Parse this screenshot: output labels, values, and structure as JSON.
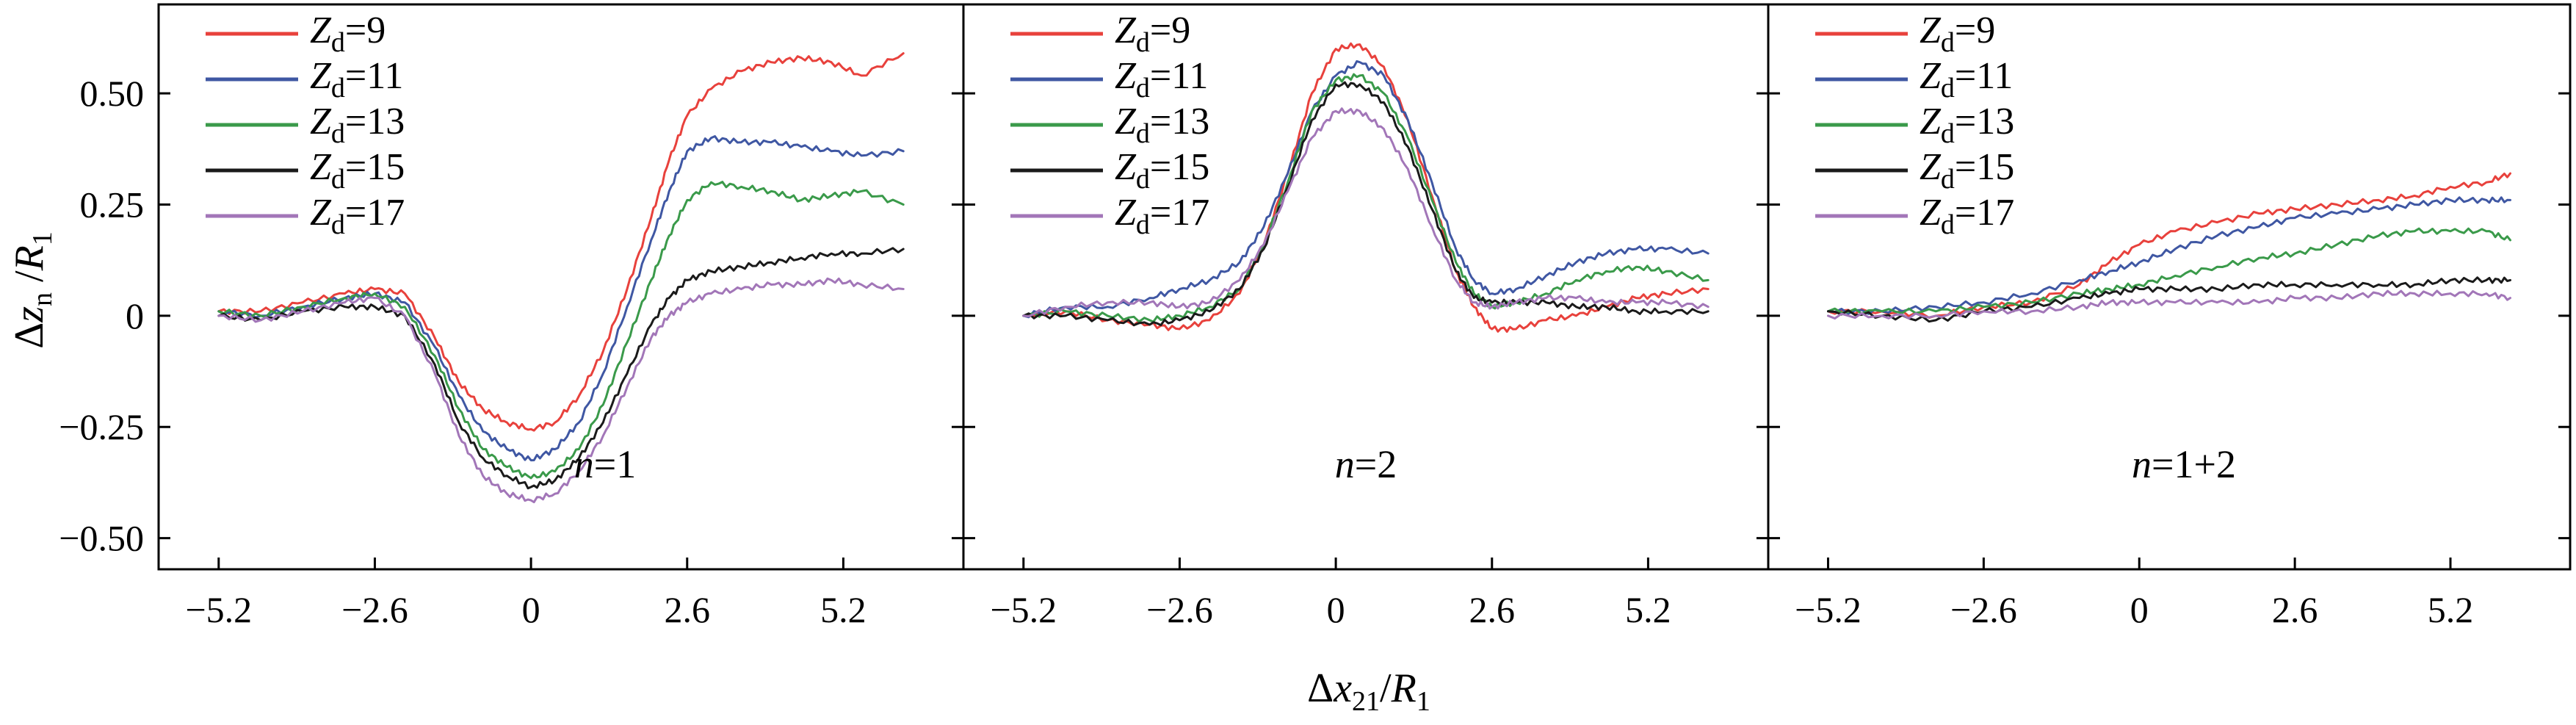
{
  "colors": {
    "Zd=9": "#e8413c",
    "Zd=11": "#3f57a3",
    "Zd=13": "#3a9a4a",
    "Zd=15": "#1a1a1a",
    "Zd=17": "#a276b8"
  },
  "chart_data": [
    {
      "type": "line",
      "panel_label": "n=1",
      "xlim": [
        -6.2,
        7.2
      ],
      "ylim": [
        -0.57,
        0.7
      ],
      "xticks": [
        -5.2,
        -2.6,
        0,
        2.6,
        5.2
      ],
      "xtick_labels": [
        "−5.2",
        "−2.6",
        "0",
        "2.6",
        "5.2"
      ],
      "yticks": [
        0.5,
        0.25,
        0,
        -0.25,
        -0.5
      ],
      "ytick_labels": [
        "0.50",
        "0.25",
        "0",
        "−0.25",
        "−0.50"
      ],
      "ylabel": "Δz_n /R_1",
      "legend": [
        "Zd=9",
        "Zd=11",
        "Zd=13",
        "Zd=15",
        "Zd=17"
      ],
      "series": [
        {
          "name": "Zd=9",
          "x": [
            -5.2,
            -4.5,
            -3.8,
            -3.1,
            -2.6,
            -2.1,
            -1.6,
            -1.2,
            -0.8,
            -0.4,
            0,
            0.4,
            0.8,
            1.2,
            1.6,
            2.0,
            2.3,
            2.6,
            3.0,
            3.5,
            4.0,
            4.5,
            5.0,
            5.5,
            6.2
          ],
          "y": [
            0.01,
            0.01,
            0.03,
            0.05,
            0.06,
            0.05,
            -0.05,
            -0.15,
            -0.21,
            -0.24,
            -0.255,
            -0.24,
            -0.18,
            -0.08,
            0.06,
            0.22,
            0.35,
            0.45,
            0.51,
            0.55,
            0.57,
            0.58,
            0.57,
            0.54,
            0.59
          ]
        },
        {
          "name": "Zd=11",
          "x": [
            -5.2,
            -4.5,
            -3.8,
            -3.1,
            -2.6,
            -2.1,
            -1.6,
            -1.2,
            -0.8,
            -0.4,
            0,
            0.4,
            0.8,
            1.2,
            1.6,
            2.0,
            2.3,
            2.6,
            3.0,
            3.5,
            4.0,
            4.5,
            5.0,
            5.5,
            6.2
          ],
          "y": [
            0.01,
            0.0,
            0.02,
            0.04,
            0.05,
            0.03,
            -0.07,
            -0.18,
            -0.26,
            -0.3,
            -0.325,
            -0.3,
            -0.24,
            -0.13,
            0.02,
            0.17,
            0.28,
            0.37,
            0.4,
            0.39,
            0.39,
            0.38,
            0.37,
            0.36,
            0.37
          ]
        },
        {
          "name": "Zd=13",
          "x": [
            -5.2,
            -4.5,
            -3.8,
            -3.1,
            -2.6,
            -2.1,
            -1.6,
            -1.2,
            -0.8,
            -0.4,
            0,
            0.4,
            0.8,
            1.2,
            1.6,
            2.0,
            2.3,
            2.6,
            3.0,
            3.5,
            4.0,
            4.5,
            5.0,
            5.5,
            6.2
          ],
          "y": [
            0.01,
            0.0,
            0.02,
            0.04,
            0.05,
            0.02,
            -0.09,
            -0.21,
            -0.3,
            -0.34,
            -0.365,
            -0.35,
            -0.3,
            -0.2,
            -0.06,
            0.08,
            0.18,
            0.26,
            0.3,
            0.29,
            0.28,
            0.26,
            0.27,
            0.28,
            0.25
          ]
        },
        {
          "name": "Zd=15",
          "x": [
            -5.2,
            -4.5,
            -3.8,
            -3.1,
            -2.6,
            -2.1,
            -1.6,
            -1.2,
            -0.8,
            -0.4,
            0,
            0.4,
            0.8,
            1.2,
            1.6,
            2.0,
            2.3,
            2.6,
            3.0,
            3.5,
            4.0,
            4.5,
            5.0,
            5.5,
            6.2
          ],
          "y": [
            0.0,
            -0.01,
            0.01,
            0.02,
            0.02,
            0.0,
            -0.11,
            -0.24,
            -0.32,
            -0.36,
            -0.385,
            -0.37,
            -0.32,
            -0.24,
            -0.13,
            -0.02,
            0.04,
            0.08,
            0.1,
            0.11,
            0.12,
            0.13,
            0.14,
            0.14,
            0.15
          ]
        },
        {
          "name": "Zd=17",
          "x": [
            -5.2,
            -4.5,
            -3.8,
            -3.1,
            -2.6,
            -2.1,
            -1.6,
            -1.2,
            -0.8,
            -0.4,
            0,
            0.4,
            0.8,
            1.2,
            1.6,
            2.0,
            2.3,
            2.6,
            3.0,
            3.5,
            4.0,
            4.5,
            5.0,
            5.5,
            6.2
          ],
          "y": [
            0.0,
            -0.01,
            0.01,
            0.03,
            0.04,
            0.0,
            -0.13,
            -0.27,
            -0.36,
            -0.4,
            -0.415,
            -0.4,
            -0.35,
            -0.27,
            -0.16,
            -0.05,
            0.0,
            0.03,
            0.05,
            0.06,
            0.07,
            0.07,
            0.08,
            0.07,
            0.06
          ]
        }
      ]
    },
    {
      "type": "line",
      "panel_label": "n=2",
      "xlim": [
        -6.2,
        7.2
      ],
      "ylim": [
        -0.57,
        0.7
      ],
      "xticks": [
        -5.2,
        -2.6,
        0,
        2.6,
        5.2
      ],
      "xtick_labels": [
        "−5.2",
        "−2.6",
        "0",
        "2.6",
        "5.2"
      ],
      "yticks": [
        0.5,
        0.25,
        0,
        -0.25,
        -0.5
      ],
      "legend": [
        "Zd=9",
        "Zd=11",
        "Zd=13",
        "Zd=15",
        "Zd=17"
      ],
      "series": [
        {
          "name": "Zd=9",
          "x": [
            -5.2,
            -4.5,
            -3.8,
            -3.1,
            -2.6,
            -2.1,
            -1.6,
            -1.2,
            -0.8,
            -0.4,
            0,
            0.4,
            0.8,
            1.2,
            1.6,
            2.0,
            2.3,
            2.6,
            3.0,
            3.5,
            4.0,
            4.5,
            5.0,
            5.5,
            6.2
          ],
          "y": [
            0.0,
            0.01,
            -0.01,
            -0.02,
            -0.03,
            -0.01,
            0.05,
            0.16,
            0.32,
            0.5,
            0.6,
            0.61,
            0.56,
            0.44,
            0.27,
            0.1,
            0.02,
            -0.03,
            -0.03,
            -0.01,
            0.0,
            0.02,
            0.04,
            0.05,
            0.06
          ]
        },
        {
          "name": "Zd=11",
          "x": [
            -5.2,
            -4.5,
            -3.8,
            -3.1,
            -2.6,
            -2.1,
            -1.6,
            -1.2,
            -0.8,
            -0.4,
            0,
            0.4,
            0.8,
            1.2,
            1.6,
            2.0,
            2.3,
            2.6,
            3.0,
            3.5,
            4.0,
            4.5,
            5.0,
            5.5,
            6.2
          ],
          "y": [
            0.0,
            0.02,
            0.02,
            0.04,
            0.06,
            0.08,
            0.12,
            0.2,
            0.32,
            0.46,
            0.54,
            0.57,
            0.54,
            0.44,
            0.3,
            0.15,
            0.08,
            0.05,
            0.06,
            0.09,
            0.12,
            0.14,
            0.15,
            0.15,
            0.14
          ]
        },
        {
          "name": "Zd=13",
          "x": [
            -5.2,
            -4.5,
            -3.8,
            -3.1,
            -2.6,
            -2.1,
            -1.6,
            -1.2,
            -0.8,
            -0.4,
            0,
            0.4,
            0.8,
            1.2,
            1.6,
            2.0,
            2.3,
            2.6,
            3.0,
            3.5,
            4.0,
            4.5,
            5.0,
            5.5,
            6.2
          ],
          "y": [
            0.0,
            0.01,
            0.0,
            -0.01,
            0.0,
            0.02,
            0.06,
            0.16,
            0.3,
            0.46,
            0.53,
            0.54,
            0.5,
            0.4,
            0.26,
            0.12,
            0.05,
            0.02,
            0.03,
            0.05,
            0.08,
            0.1,
            0.11,
            0.1,
            0.08
          ]
        },
        {
          "name": "Zd=15",
          "x": [
            -5.2,
            -4.5,
            -3.8,
            -3.1,
            -2.6,
            -2.1,
            -1.6,
            -1.2,
            -0.8,
            -0.4,
            0,
            0.4,
            0.8,
            1.2,
            1.6,
            2.0,
            2.3,
            2.6,
            3.0,
            3.5,
            4.0,
            4.5,
            5.0,
            5.5,
            6.2
          ],
          "y": [
            0.0,
            0.0,
            -0.01,
            -0.02,
            -0.01,
            0.01,
            0.06,
            0.15,
            0.29,
            0.44,
            0.52,
            0.52,
            0.48,
            0.38,
            0.24,
            0.1,
            0.04,
            0.03,
            0.03,
            0.03,
            0.02,
            0.02,
            0.01,
            0.01,
            0.01
          ]
        },
        {
          "name": "Zd=17",
          "x": [
            -5.2,
            -4.5,
            -3.8,
            -3.1,
            -2.6,
            -2.1,
            -1.6,
            -1.2,
            -0.8,
            -0.4,
            0,
            0.4,
            0.8,
            1.2,
            1.6,
            2.0,
            2.3,
            2.6,
            3.0,
            3.5,
            4.0,
            4.5,
            5.0,
            5.5,
            6.2
          ],
          "y": [
            0.0,
            0.02,
            0.03,
            0.03,
            0.02,
            0.03,
            0.08,
            0.16,
            0.28,
            0.4,
            0.46,
            0.46,
            0.42,
            0.33,
            0.2,
            0.08,
            0.03,
            0.02,
            0.03,
            0.04,
            0.04,
            0.03,
            0.03,
            0.03,
            0.02
          ]
        }
      ]
    },
    {
      "type": "line",
      "panel_label": "n=1+2",
      "xlim": [
        -6.2,
        7.2
      ],
      "ylim": [
        -0.57,
        0.7
      ],
      "xticks": [
        -5.2,
        -2.6,
        0,
        2.6,
        5.2
      ],
      "xtick_labels": [
        "−5.2",
        "−2.6",
        "0",
        "2.6",
        "5.2"
      ],
      "yticks": [
        0.5,
        0.25,
        0,
        -0.25,
        -0.5
      ],
      "legend": [
        "Zd=9",
        "Zd=11",
        "Zd=13",
        "Zd=15",
        "Zd=17"
      ],
      "series": [
        {
          "name": "Zd=9",
          "x": [
            -5.2,
            -4.3,
            -3.4,
            -2.6,
            -1.8,
            -1.0,
            -0.5,
            0,
            0.6,
            1.3,
            2.0,
            2.6,
            3.3,
            4.0,
            4.6,
            5.2,
            5.8,
            6.2
          ],
          "y": [
            0.01,
            0.01,
            0.0,
            0.02,
            0.03,
            0.07,
            0.12,
            0.16,
            0.19,
            0.21,
            0.23,
            0.24,
            0.25,
            0.26,
            0.27,
            0.29,
            0.3,
            0.32
          ]
        },
        {
          "name": "Zd=11",
          "x": [
            -5.2,
            -4.3,
            -3.4,
            -2.6,
            -1.8,
            -1.0,
            -0.5,
            0,
            0.6,
            1.3,
            2.0,
            2.6,
            3.3,
            4.0,
            4.6,
            5.2,
            5.8,
            6.2
          ],
          "y": [
            0.01,
            0.01,
            0.02,
            0.03,
            0.05,
            0.08,
            0.1,
            0.12,
            0.15,
            0.18,
            0.2,
            0.22,
            0.23,
            0.24,
            0.25,
            0.26,
            0.26,
            0.26
          ]
        },
        {
          "name": "Zd=13",
          "x": [
            -5.2,
            -4.3,
            -3.4,
            -2.6,
            -1.8,
            -1.0,
            -0.5,
            0,
            0.6,
            1.3,
            2.0,
            2.6,
            3.3,
            4.0,
            4.6,
            5.2,
            5.8,
            6.2
          ],
          "y": [
            0.01,
            0.01,
            0.01,
            0.02,
            0.03,
            0.05,
            0.06,
            0.07,
            0.09,
            0.11,
            0.13,
            0.14,
            0.16,
            0.18,
            0.19,
            0.19,
            0.19,
            0.17
          ]
        },
        {
          "name": "Zd=15",
          "x": [
            -5.2,
            -4.3,
            -3.4,
            -2.6,
            -1.8,
            -1.0,
            -0.5,
            0,
            0.6,
            1.3,
            2.0,
            2.6,
            3.3,
            4.0,
            4.6,
            5.2,
            5.8,
            6.2
          ],
          "y": [
            0.01,
            0.0,
            -0.01,
            0.01,
            0.02,
            0.04,
            0.05,
            0.06,
            0.06,
            0.06,
            0.07,
            0.07,
            0.07,
            0.07,
            0.07,
            0.08,
            0.08,
            0.08
          ]
        },
        {
          "name": "Zd=17",
          "x": [
            -5.2,
            -4.3,
            -3.4,
            -2.6,
            -1.8,
            -1.0,
            -0.5,
            0,
            0.6,
            1.3,
            2.0,
            2.6,
            3.3,
            4.0,
            4.6,
            5.2,
            5.8,
            6.2
          ],
          "y": [
            0.0,
            0.0,
            0.0,
            0.01,
            0.01,
            0.02,
            0.03,
            0.03,
            0.03,
            0.03,
            0.03,
            0.04,
            0.04,
            0.05,
            0.05,
            0.05,
            0.05,
            0.04
          ]
        }
      ]
    }
  ],
  "xlabel": "Δx21/R1"
}
